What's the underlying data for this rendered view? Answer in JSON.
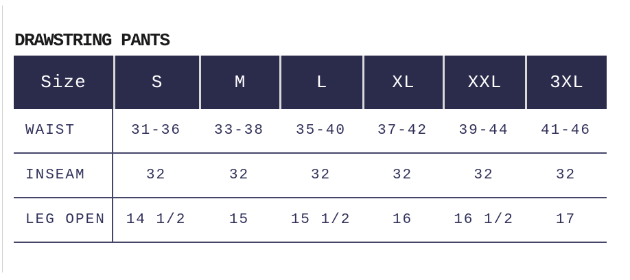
{
  "page": {
    "title": "DRAWSTRING PANTS"
  },
  "size_chart": {
    "columns": [
      "Size",
      "S",
      "M",
      "L",
      "XL",
      "XXL",
      "3XL"
    ],
    "rows": [
      {
        "label": "WAIST",
        "values": [
          "31-36",
          "33-38",
          "35-40",
          "37-42",
          "39-44",
          "41-46"
        ]
      },
      {
        "label": "INSEAM",
        "values": [
          "32",
          "32",
          "32",
          "32",
          "32",
          "32"
        ]
      },
      {
        "label": "LEG OPEN",
        "values": [
          "14 1/2",
          "15",
          "15 1/2",
          "16",
          "16 1/2",
          "17"
        ]
      }
    ]
  },
  "chart_data": {
    "type": "table",
    "title": "DRAWSTRING PANTS",
    "columns": [
      "Size",
      "S",
      "M",
      "L",
      "XL",
      "XXL",
      "3XL"
    ],
    "rows": [
      [
        "WAIST",
        "31-36",
        "33-38",
        "35-40",
        "37-42",
        "39-44",
        "41-46"
      ],
      [
        "INSEAM",
        "32",
        "32",
        "32",
        "32",
        "32",
        "32"
      ],
      [
        "LEG OPEN",
        "14 1/2",
        "15",
        "15 1/2",
        "16",
        "16 1/2",
        "17"
      ]
    ]
  },
  "colors": {
    "page_bg": "#ffffff",
    "header_bg": "#2b2b4c",
    "header_text": "#ffffff",
    "header_divider": "#d9d9d9",
    "body_text": "#30305a",
    "grid_line": "#45456a",
    "title_text": "#1b1b1b"
  }
}
